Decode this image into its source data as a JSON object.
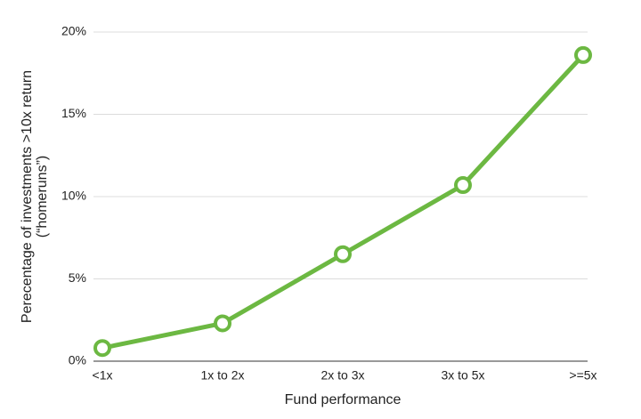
{
  "chart_data": {
    "type": "line",
    "x_label": "Fund performance",
    "y_label": [
      "Perecentage of investments >10x return",
      "(“homeruns”)"
    ],
    "categories": [
      "<1x",
      "1x to 2x",
      "2x to 3x",
      "3x to 5x",
      ">=5x"
    ],
    "series": [
      {
        "color": "#6cb842",
        "values": [
          0.8,
          2.3,
          6.5,
          10.7,
          18.6
        ]
      }
    ],
    "ylim": [
      0,
      20
    ],
    "yticks": [
      {
        "value": 0,
        "label": "0%"
      },
      {
        "value": 5,
        "label": "5%"
      },
      {
        "value": 10,
        "label": "10%"
      },
      {
        "value": 15,
        "label": "15%"
      },
      {
        "value": 20,
        "label": "20%"
      }
    ],
    "grid": true
  }
}
